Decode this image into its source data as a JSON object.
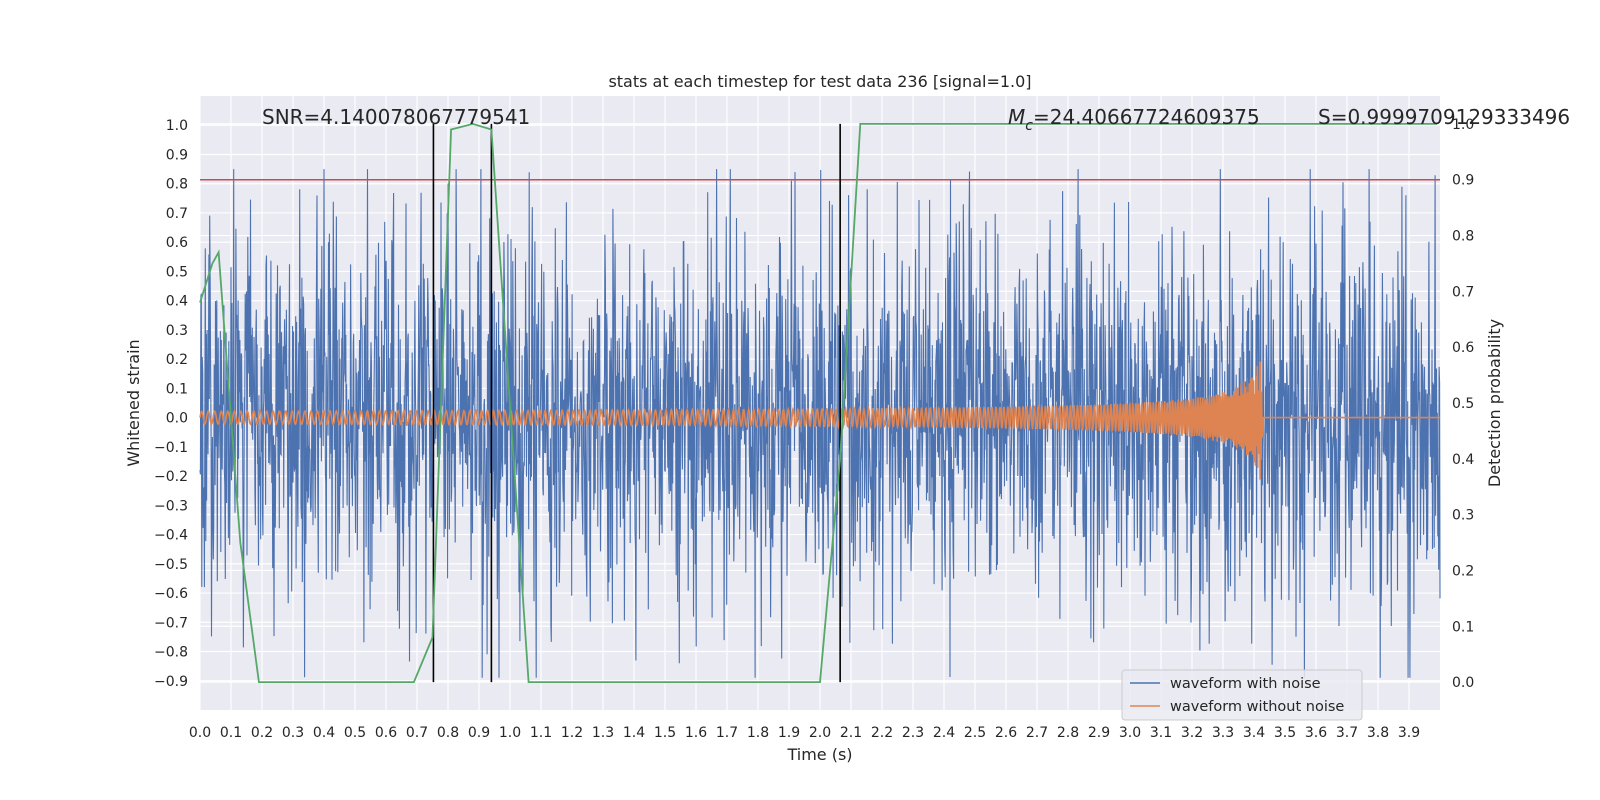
{
  "chart_data": {
    "type": "line",
    "title": "stats at each timestep for test data 236 [signal=1.0]",
    "xlabel": "Time (s)",
    "ylabel_left": "Whitened strain",
    "ylabel_right": "Detection probability",
    "xlim": [
      0.0,
      4.0
    ],
    "ylim_left": [
      -1.0,
      1.1
    ],
    "ylim_right": [
      -0.05,
      1.05
    ],
    "x_ticks": [
      "0.0",
      "0.1",
      "0.2",
      "0.3",
      "0.4",
      "0.5",
      "0.6",
      "0.7",
      "0.8",
      "0.9",
      "1.0",
      "1.1",
      "1.2",
      "1.3",
      "1.4",
      "1.5",
      "1.6",
      "1.7",
      "1.8",
      "1.9",
      "2.0",
      "2.1",
      "2.2",
      "2.3",
      "2.4",
      "2.5",
      "2.6",
      "2.7",
      "2.8",
      "2.9",
      "3.0",
      "3.1",
      "3.2",
      "3.3",
      "3.4",
      "3.5",
      "3.6",
      "3.7",
      "3.8",
      "3.9"
    ],
    "y_ticks_left": [
      "1.0",
      "0.9",
      "0.8",
      "0.7",
      "0.6",
      "0.5",
      "0.4",
      "0.3",
      "0.2",
      "0.1",
      "0.0",
      "−0.1",
      "−0.2",
      "−0.3",
      "−0.4",
      "−0.5",
      "−0.6",
      "−0.7",
      "−0.8",
      "−0.9"
    ],
    "y_ticks_right": [
      "1.0",
      "0.9",
      "0.8",
      "0.7",
      "0.6",
      "0.5",
      "0.4",
      "0.3",
      "0.2",
      "0.1",
      "0.0"
    ],
    "grid": true,
    "legend_position": "bottom-right",
    "annotations": {
      "snr": "SNR=4.140078067779541",
      "mc_symbol": "M",
      "mc_sub": "c",
      "mc_value": "=24.40667724609375",
      "s": "S=0.9999709129333496"
    },
    "threshold_line": {
      "y_right": 0.9,
      "color": "#c44e52"
    },
    "vertical_lines": [
      0.753,
      0.94,
      2.065
    ],
    "series": [
      {
        "name": "waveform with noise",
        "axis": "left",
        "color": "#4c72b0",
        "amplitude": 0.45,
        "peak": 0.85
      },
      {
        "name": "waveform without noise",
        "axis": "left",
        "color": "#dd8452",
        "chirp": {
          "start": 0.0,
          "end": 3.43,
          "amp_start": 0.01,
          "amp_end": 0.27
        }
      },
      {
        "name": "Detection probability",
        "axis": "right",
        "color": "#55a868",
        "x": [
          0.0,
          0.04,
          0.06,
          0.13,
          0.19,
          0.25,
          0.5,
          0.69,
          0.75,
          0.81,
          0.88,
          0.94,
          1.06,
          1.5,
          2.0,
          2.065,
          2.13,
          2.5,
          3.0,
          3.5,
          3.99
        ],
        "y": [
          0.68,
          0.75,
          0.77,
          0.25,
          0.0,
          0.0,
          0.0,
          0.0,
          0.08,
          0.99,
          1.0,
          0.99,
          0.0,
          0.0,
          0.0,
          0.4,
          1.0,
          1.0,
          1.0,
          1.0,
          1.0
        ]
      }
    ]
  }
}
